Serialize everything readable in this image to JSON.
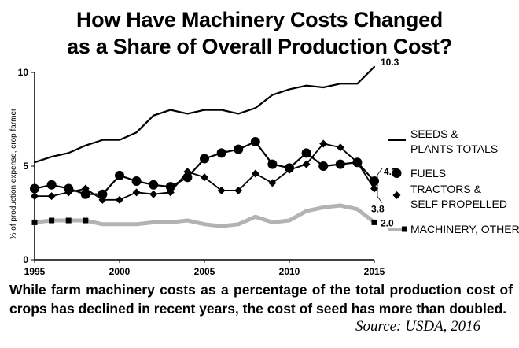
{
  "chart_data": {
    "type": "line",
    "title": [
      "How Have Machinery Costs Changed",
      "as a Share of Overall Production Cost?"
    ],
    "xlabel": "",
    "ylabel": "% of production expense, crop farmer",
    "xlim": [
      1995,
      2015
    ],
    "ylim": [
      0,
      10
    ],
    "xticks": [
      "1995",
      "2000",
      "2005",
      "2010",
      "2015"
    ],
    "yticks": [
      "0",
      "5",
      "10"
    ],
    "grid": false,
    "legend_position": "right",
    "x": [
      1995,
      1996,
      1997,
      1998,
      1999,
      2000,
      2001,
      2002,
      2003,
      2004,
      2005,
      2006,
      2007,
      2008,
      2009,
      2010,
      2011,
      2012,
      2013,
      2014,
      2015
    ],
    "series": [
      {
        "name": [
          "SEEDS &",
          "PLANTS TOTALS"
        ],
        "style": "line",
        "color": "#000000",
        "values": [
          5.2,
          5.5,
          5.7,
          6.1,
          6.4,
          6.4,
          6.8,
          7.7,
          8.0,
          7.8,
          8.0,
          8.0,
          7.8,
          8.1,
          8.8,
          9.1,
          9.3,
          9.2,
          9.4,
          9.4,
          10.3
        ],
        "end_label": "10.3"
      },
      {
        "name": [
          "FUELS"
        ],
        "style": "circle",
        "color": "#000000",
        "values": [
          3.8,
          4.0,
          3.8,
          3.5,
          3.5,
          4.5,
          4.2,
          4.0,
          3.9,
          4.4,
          5.4,
          5.7,
          5.9,
          6.3,
          5.1,
          4.9,
          5.7,
          5.0,
          5.1,
          5.2,
          4.2
        ],
        "end_label": "4.2"
      },
      {
        "name": [
          "TRACTORS &",
          "SELF PROPELLED"
        ],
        "style": "diamond",
        "color": "#000000",
        "values": [
          3.4,
          3.4,
          3.6,
          3.8,
          3.2,
          3.2,
          3.6,
          3.5,
          3.6,
          4.7,
          4.4,
          3.7,
          3.7,
          4.6,
          4.1,
          4.8,
          5.1,
          6.2,
          6.0,
          5.2,
          3.8
        ],
        "end_label": "3.8"
      },
      {
        "name": [
          "MACHINERY, OTHER"
        ],
        "style": "square",
        "color": "#b3b3b3",
        "values": [
          2.0,
          2.1,
          2.1,
          2.1,
          1.9,
          1.9,
          1.9,
          2.0,
          2.0,
          2.1,
          1.9,
          1.8,
          1.9,
          2.3,
          2.0,
          2.1,
          2.6,
          2.8,
          2.9,
          2.7,
          2.0
        ],
        "end_label": "2.0"
      }
    ]
  },
  "caption": "While farm machinery costs as a percentage of the total production cost of crops has declined in recent years, the cost of seed has more than doubled.",
  "source": "Source: USDA, 2016"
}
